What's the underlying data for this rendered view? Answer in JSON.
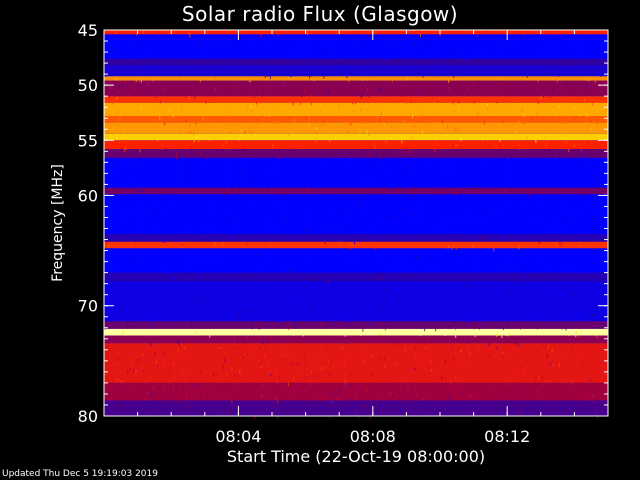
{
  "title": "Solar radio Flux (Glasgow)",
  "updated": "Updated Thu Dec  5 19:19:03 2019",
  "chart_data": {
    "type": "heatmap",
    "title": "Solar radio Flux (Glasgow)",
    "xlabel": "Start Time (22-Oct-19 08:00:00)",
    "ylabel": "Frequency [MHz]",
    "x_unit": "minutes after 08:00",
    "xlim": [
      0,
      15
    ],
    "ylim": [
      45,
      80
    ],
    "y_reversed": true,
    "x_ticks": [
      {
        "value": 4,
        "label": "08:04"
      },
      {
        "value": 8,
        "label": "08:08"
      },
      {
        "value": 12,
        "label": "08:12"
      }
    ],
    "y_ticks": [
      {
        "value": 45,
        "label": "45"
      },
      {
        "value": 50,
        "label": "50"
      },
      {
        "value": 55,
        "label": "55"
      },
      {
        "value": 60,
        "label": "60"
      },
      {
        "value": 70,
        "label": "70"
      },
      {
        "value": 80,
        "label": "80"
      }
    ],
    "colormap": [
      "#0000ff",
      "#3000a0",
      "#a00040",
      "#ff2000",
      "#ff8000",
      "#ffd000",
      "#ffffa0"
    ],
    "bands": [
      {
        "f0": 45.0,
        "f1": 45.4,
        "level": 3
      },
      {
        "f0": 45.4,
        "f1": 47.6,
        "level": 0
      },
      {
        "f0": 47.6,
        "f1": 48.2,
        "level": 1
      },
      {
        "f0": 48.2,
        "f1": 49.2,
        "level": 0.5
      },
      {
        "f0": 49.2,
        "f1": 49.6,
        "level": 4.2
      },
      {
        "f0": 49.6,
        "f1": 51.0,
        "level": 1.8
      },
      {
        "f0": 51.0,
        "f1": 51.6,
        "level": 3.2
      },
      {
        "f0": 51.6,
        "f1": 52.8,
        "level": 4.5
      },
      {
        "f0": 52.8,
        "f1": 53.4,
        "level": 3.6
      },
      {
        "f0": 53.4,
        "f1": 54.4,
        "level": 4.3
      },
      {
        "f0": 54.4,
        "f1": 55.0,
        "level": 5.0
      },
      {
        "f0": 55.0,
        "f1": 55.8,
        "level": 3.0
      },
      {
        "f0": 55.8,
        "f1": 56.6,
        "level": 1.5
      },
      {
        "f0": 56.6,
        "f1": 59.3,
        "level": 0
      },
      {
        "f0": 59.3,
        "f1": 59.9,
        "level": 1.6
      },
      {
        "f0": 59.9,
        "f1": 63.5,
        "level": 0
      },
      {
        "f0": 63.5,
        "f1": 64.2,
        "level": 0.8
      },
      {
        "f0": 64.2,
        "f1": 64.8,
        "level": 3.2
      },
      {
        "f0": 64.8,
        "f1": 67.0,
        "level": 0
      },
      {
        "f0": 67.0,
        "f1": 67.8,
        "level": 0.8
      },
      {
        "f0": 67.8,
        "f1": 71.4,
        "level": 0.3
      },
      {
        "f0": 71.4,
        "f1": 72.1,
        "level": 1.5
      },
      {
        "f0": 72.1,
        "f1": 72.7,
        "level": 6.0
      },
      {
        "f0": 72.7,
        "f1": 73.4,
        "level": 1.8
      },
      {
        "f0": 73.4,
        "f1": 77.0,
        "level": 2.7
      },
      {
        "f0": 77.0,
        "f1": 78.6,
        "level": 2.0
      },
      {
        "f0": 78.6,
        "f1": 80.0,
        "level": 1.2
      }
    ]
  }
}
